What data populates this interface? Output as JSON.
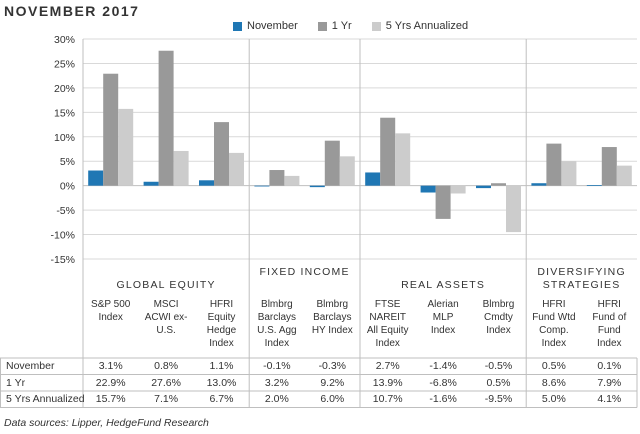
{
  "title": "NOVEMBER 2017",
  "source": "Data sources: Lipper, HedgeFund Research",
  "colors": {
    "November": "#1f77b4",
    "1 Yr": "#999999",
    "5 Yrs Annualized": "#cccccc"
  },
  "chart_data": {
    "type": "bar",
    "ylim": [
      -15,
      30
    ],
    "yticks": [
      "30%",
      "25%",
      "20%",
      "15%",
      "10%",
      "5%",
      "0%",
      "-5%",
      "-10%",
      "-15%"
    ],
    "groups": [
      {
        "name": "GLOBAL EQUITY",
        "count": 3
      },
      {
        "name": "FIXED INCOME",
        "count": 2
      },
      {
        "name": "REAL ASSETS",
        "count": 3
      },
      {
        "name": "DIVERSIFYING STRATEGIES",
        "count": 2
      }
    ],
    "categories": [
      "S&P 500 Index",
      "MSCI ACWI ex-U.S.",
      "HFRI Equity Hedge Index",
      "Blmbrg Barclays U.S. Agg Index",
      "Blmbrg Barclays HY Index",
      "FTSE NAREIT All Equity Index",
      "Alerian MLP Index",
      "Blmbrg Cmdty Index",
      "HFRI Fund Wtd Comp. Index",
      "HFRI Fund of Fund Index"
    ],
    "series": [
      {
        "name": "November",
        "values": [
          3.1,
          0.8,
          1.1,
          -0.1,
          -0.3,
          2.7,
          -1.4,
          -0.5,
          0.5,
          0.1
        ]
      },
      {
        "name": "1 Yr",
        "values": [
          22.9,
          27.6,
          13.0,
          3.2,
          9.2,
          13.9,
          -6.8,
          0.5,
          8.6,
          7.9
        ]
      },
      {
        "name": "5 Yrs Annualized",
        "values": [
          15.7,
          7.1,
          6.7,
          2.0,
          6.0,
          10.7,
          -1.6,
          -9.5,
          5.0,
          4.1
        ]
      }
    ],
    "table": {
      "rows": [
        {
          "label": "November",
          "cells": [
            "3.1%",
            "0.8%",
            "1.1%",
            "-0.1%",
            "-0.3%",
            "2.7%",
            "-1.4%",
            "-0.5%",
            "0.5%",
            "0.1%"
          ]
        },
        {
          "label": "1 Yr",
          "cells": [
            "22.9%",
            "27.6%",
            "13.0%",
            "3.2%",
            "9.2%",
            "13.9%",
            "-6.8%",
            "0.5%",
            "8.6%",
            "7.9%"
          ]
        },
        {
          "label": "5 Yrs Annualized",
          "cells": [
            "15.7%",
            "7.1%",
            "6.7%",
            "2.0%",
            "6.0%",
            "10.7%",
            "-1.6%",
            "-9.5%",
            "5.0%",
            "4.1%"
          ]
        }
      ]
    }
  }
}
